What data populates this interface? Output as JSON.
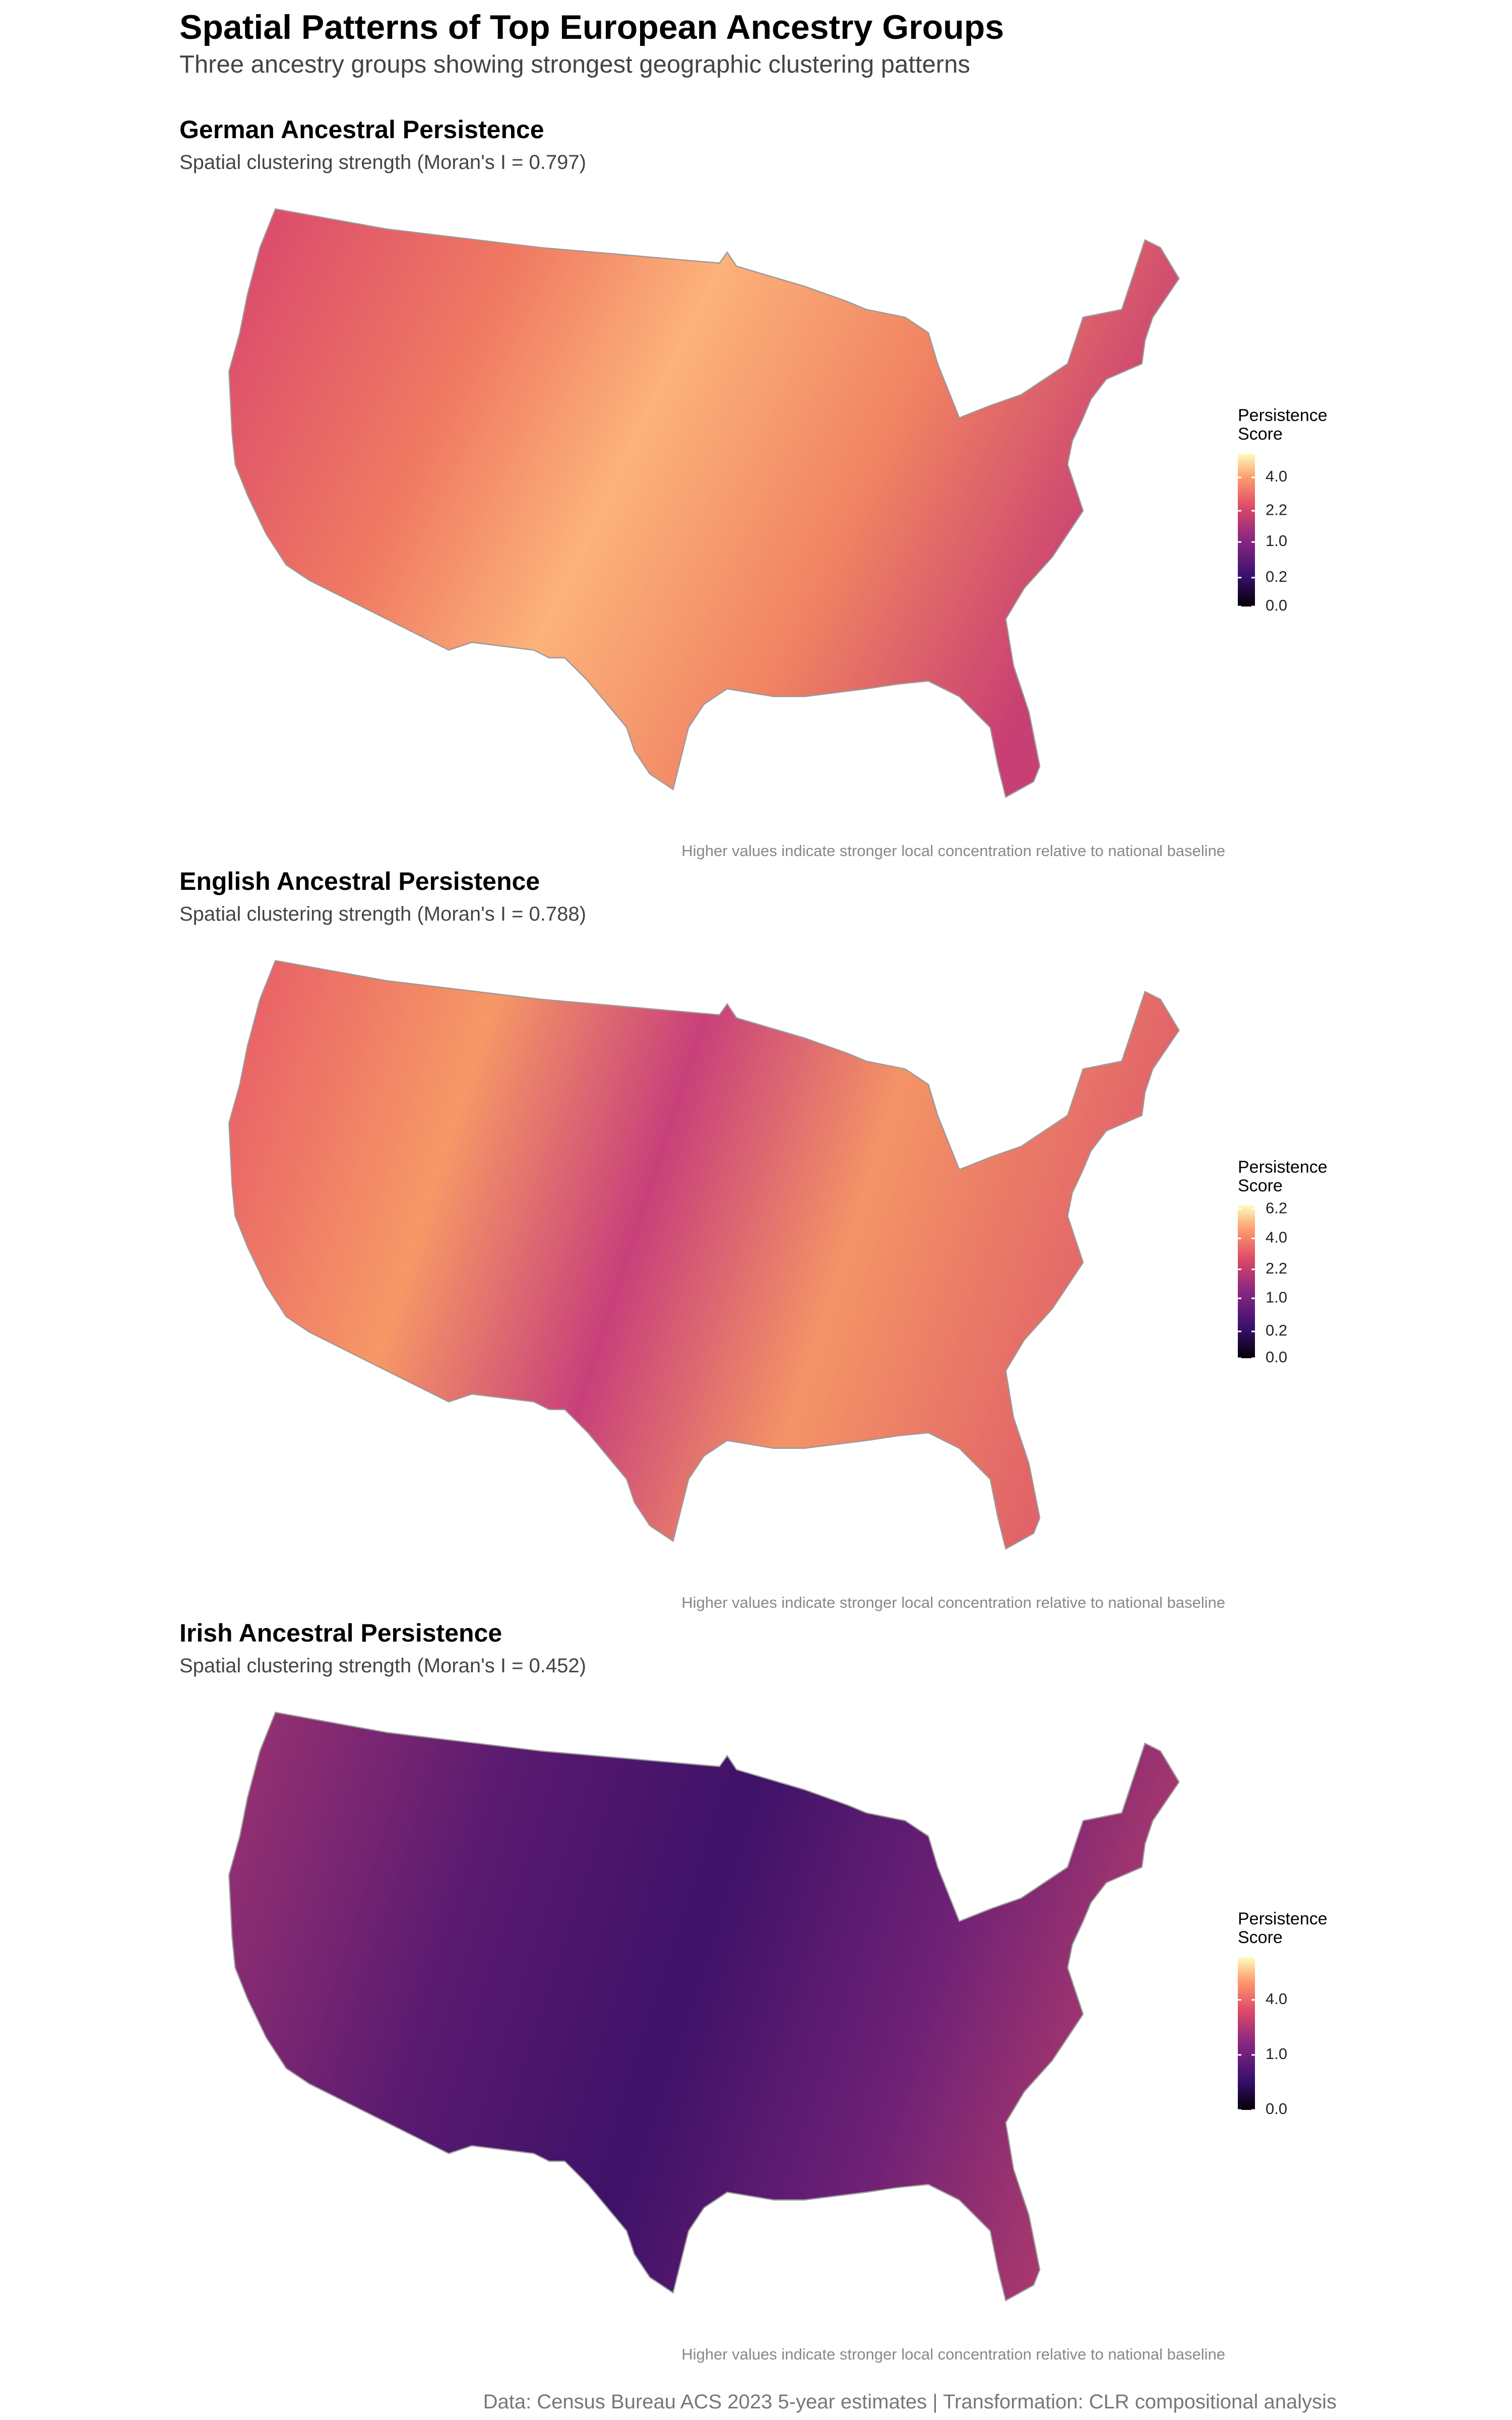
{
  "title": "Spatial Patterns of Top European Ancestry Groups",
  "subtitle": "Three ancestry groups showing strongest geographic clustering patterns",
  "footer": "Data: Census Bureau ACS 2023 5-year estimates | Transformation: CLR compositional analysis",
  "chart_data": [
    {
      "type": "choropleth",
      "title": "German Ancestral Persistence",
      "subtitle": "Spatial clustering strength (Moran's I = 0.797)",
      "note": "Higher values indicate stronger local concentration relative to national baseline",
      "legend_title": "Persistence Score",
      "legend_scale": "sqrt",
      "legend_lim": [
        0,
        5.6
      ],
      "legend_ticks": [
        {
          "value": 0,
          "label": "0.0"
        },
        0.2,
        {
          "value": 1,
          "label": "1.0"
        },
        2.2,
        {
          "value": 4,
          "label": "4.0"
        }
      ]
    },
    {
      "type": "choropleth",
      "title": "English Ancestral Persistence",
      "subtitle": "Spatial clustering strength (Moran's I = 0.788)",
      "note": "Higher values indicate stronger local concentration relative to national baseline",
      "legend_title": "Persistence Score",
      "legend_scale": "sqrt",
      "legend_lim": [
        0,
        6.5
      ],
      "legend_ticks": [
        {
          "value": 0,
          "label": "0.0"
        },
        0.2,
        {
          "value": 1,
          "label": "1.0"
        },
        2.2,
        {
          "value": 4,
          "label": "4.0"
        },
        6.2
      ]
    },
    {
      "type": "choropleth",
      "title": "Irish Ancestral Persistence",
      "subtitle": "Spatial clustering strength (Moran's I = 0.452)",
      "note": "Higher values indicate stronger local concentration relative to national baseline",
      "legend_title": "Persistence Score",
      "legend_scale": "sqrt",
      "legend_lim": [
        0,
        7.7
      ],
      "legend_ticks": [
        {
          "value": 0,
          "label": "0.0"
        },
        {
          "value": 1,
          "label": "1.0"
        },
        {
          "value": 4,
          "label": "4.0"
        }
      ]
    }
  ]
}
